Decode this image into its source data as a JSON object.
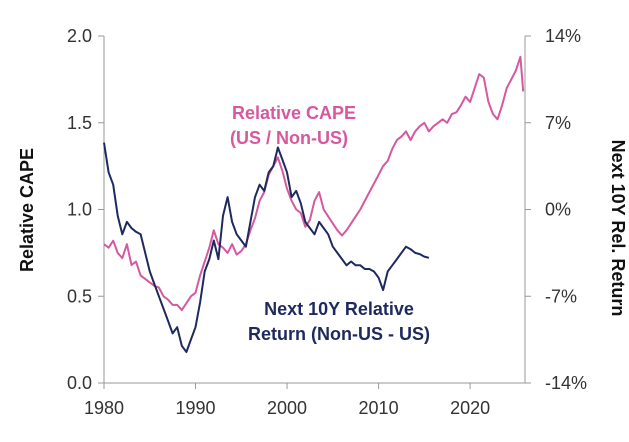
{
  "chart_data": {
    "type": "line",
    "title": "",
    "xlabel": "",
    "ylabel": "Relative CAPE",
    "y2label": "Next 10Y Rel. Return",
    "xlim": [
      1980,
      2026
    ],
    "xticks": [
      "1980",
      "1990",
      "2000",
      "2010",
      "2020"
    ],
    "ylim": [
      0.0,
      2.0
    ],
    "yticks": [
      "0.0",
      "0.5",
      "1.0",
      "1.5",
      "2.0"
    ],
    "y2lim": [
      -14,
      14
    ],
    "y2ticks": [
      "-14%",
      "-7%",
      "0%",
      "7%",
      "14%"
    ],
    "grid": false,
    "colors": {
      "cape": "#d6589f",
      "returns": "#1e2a5e",
      "axis": "#999999"
    },
    "series": [
      {
        "name": "Relative CAPE (US / Non-US)",
        "label_lines": [
          "Relative CAPE",
          "(US / Non-US)"
        ],
        "axis": "left",
        "x": [
          1980.0,
          1980.5,
          1981.0,
          1981.5,
          1982.0,
          1982.5,
          1983.0,
          1983.5,
          1984.0,
          1984.5,
          1985.0,
          1985.5,
          1986.0,
          1986.5,
          1987.0,
          1987.5,
          1988.0,
          1988.5,
          1989.0,
          1989.5,
          1990.0,
          1990.5,
          1991.0,
          1991.5,
          1992.0,
          1992.5,
          1993.0,
          1993.5,
          1994.0,
          1994.5,
          1995.0,
          1995.5,
          1996.0,
          1996.5,
          1997.0,
          1997.5,
          1998.0,
          1998.5,
          1999.0,
          1999.5,
          2000.0,
          2000.5,
          2001.0,
          2001.5,
          2002.0,
          2002.5,
          2003.0,
          2003.5,
          2004.0,
          2004.5,
          2005.0,
          2005.5,
          2006.0,
          2006.5,
          2007.0,
          2007.5,
          2008.0,
          2008.5,
          2009.0,
          2009.5,
          2010.0,
          2010.5,
          2011.0,
          2011.5,
          2012.0,
          2012.5,
          2013.0,
          2013.5,
          2014.0,
          2014.5,
          2015.0,
          2015.5,
          2016.0,
          2016.5,
          2017.0,
          2017.5,
          2018.0,
          2018.5,
          2019.0,
          2019.5,
          2020.0,
          2020.5,
          2021.0,
          2021.5,
          2022.0,
          2022.5,
          2023.0,
          2023.5,
          2024.0,
          2024.5,
          2025.0,
          2025.5,
          2025.8
        ],
        "values": [
          0.8,
          0.78,
          0.82,
          0.75,
          0.72,
          0.8,
          0.68,
          0.7,
          0.62,
          0.6,
          0.58,
          0.56,
          0.55,
          0.5,
          0.48,
          0.45,
          0.45,
          0.42,
          0.46,
          0.5,
          0.52,
          0.62,
          0.7,
          0.78,
          0.88,
          0.8,
          0.78,
          0.75,
          0.8,
          0.74,
          0.76,
          0.8,
          0.88,
          0.95,
          1.05,
          1.1,
          1.2,
          1.25,
          1.3,
          1.22,
          1.12,
          1.05,
          1.0,
          0.98,
          0.9,
          0.94,
          1.05,
          1.1,
          1.0,
          0.96,
          0.92,
          0.88,
          0.85,
          0.88,
          0.92,
          0.96,
          1.0,
          1.05,
          1.1,
          1.15,
          1.2,
          1.25,
          1.28,
          1.35,
          1.4,
          1.42,
          1.45,
          1.4,
          1.45,
          1.48,
          1.5,
          1.45,
          1.48,
          1.5,
          1.52,
          1.5,
          1.55,
          1.56,
          1.6,
          1.65,
          1.62,
          1.7,
          1.78,
          1.76,
          1.62,
          1.55,
          1.52,
          1.6,
          1.7,
          1.75,
          1.8,
          1.88,
          1.68
        ]
      },
      {
        "name": "Next 10Y Relative Return (Non-US - US)",
        "label_lines": [
          "Next 10Y Relative",
          "Return (Non-US - US)"
        ],
        "axis": "right",
        "x": [
          1980.0,
          1980.5,
          1981.0,
          1981.5,
          1982.0,
          1982.5,
          1983.0,
          1983.5,
          1984.0,
          1984.5,
          1985.0,
          1985.5,
          1986.0,
          1986.5,
          1987.0,
          1987.5,
          1988.0,
          1988.5,
          1989.0,
          1989.5,
          1990.0,
          1990.5,
          1991.0,
          1991.5,
          1992.0,
          1992.5,
          1993.0,
          1993.5,
          1994.0,
          1994.5,
          1995.0,
          1995.5,
          1996.0,
          1996.5,
          1997.0,
          1997.5,
          1998.0,
          1998.5,
          1999.0,
          1999.5,
          2000.0,
          2000.5,
          2001.0,
          2001.5,
          2002.0,
          2002.5,
          2003.0,
          2003.5,
          2004.0,
          2004.5,
          2005.0,
          2005.5,
          2006.0,
          2006.5,
          2007.0,
          2007.5,
          2008.0,
          2008.5,
          2009.0,
          2009.5,
          2010.0,
          2010.5,
          2011.0,
          2011.5,
          2012.0,
          2012.5,
          2013.0,
          2013.5,
          2014.0,
          2014.5,
          2015.0,
          2015.5
        ],
        "values": [
          5.4,
          3.0,
          2.0,
          -0.5,
          -2.0,
          -1.0,
          -1.5,
          -1.8,
          -2.0,
          -3.5,
          -5.0,
          -6.0,
          -7.0,
          -8.0,
          -9.0,
          -10.0,
          -9.5,
          -11.0,
          -11.5,
          -10.5,
          -9.5,
          -7.5,
          -5.0,
          -4.0,
          -2.5,
          -4.0,
          -0.5,
          1.0,
          -1.0,
          -2.0,
          -2.5,
          -3.0,
          -1.0,
          1.0,
          2.0,
          1.5,
          3.0,
          3.5,
          5.0,
          4.0,
          3.0,
          1.0,
          1.5,
          0.5,
          -1.0,
          -1.5,
          -2.0,
          -1.0,
          -1.5,
          -2.0,
          -3.0,
          -3.5,
          -4.0,
          -4.5,
          -4.2,
          -4.5,
          -4.5,
          -4.8,
          -4.8,
          -5.0,
          -5.5,
          -6.5,
          -5.0,
          -4.5,
          -4.0,
          -3.5,
          -3.0,
          -3.2,
          -3.5,
          -3.6,
          -3.8,
          -3.9
        ]
      }
    ]
  }
}
